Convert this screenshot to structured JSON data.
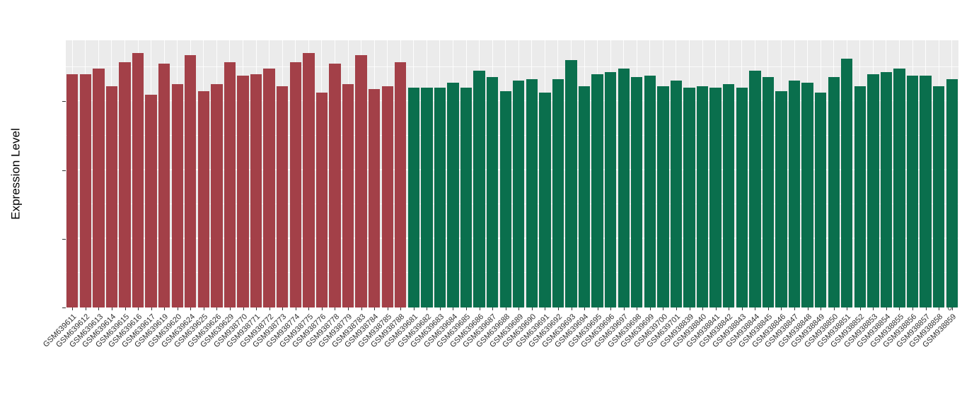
{
  "chart_data": {
    "type": "bar",
    "title": "",
    "xlabel": "",
    "ylabel": "Expression Level",
    "ylim": [
      0,
      7.78
    ],
    "yticks": [
      0,
      2,
      4,
      6
    ],
    "yticks_minor": [
      1,
      3,
      5,
      7
    ],
    "grid": true,
    "legend": "none",
    "panel_background": "#EBEBEB",
    "bar_groups": [
      {
        "name": "group-1",
        "color": "#A34048",
        "start": 0,
        "count": 26
      },
      {
        "name": "group-2",
        "color": "#0A6F4D",
        "start": 26,
        "count": 42
      }
    ],
    "categories": [
      "GSM639611",
      "GSM639612",
      "GSM639613",
      "GSM639614",
      "GSM639615",
      "GSM639616",
      "GSM639617",
      "GSM639619",
      "GSM639620",
      "GSM639624",
      "GSM639625",
      "GSM639626",
      "GSM639629",
      "GSM938770",
      "GSM938771",
      "GSM938772",
      "GSM938773",
      "GSM938774",
      "GSM938775",
      "GSM938776",
      "GSM938778",
      "GSM938779",
      "GSM938783",
      "GSM938784",
      "GSM938785",
      "GSM938788",
      "GSM639681",
      "GSM639682",
      "GSM639683",
      "GSM639684",
      "GSM639685",
      "GSM639686",
      "GSM639687",
      "GSM639688",
      "GSM639689",
      "GSM639690",
      "GSM639691",
      "GSM639692",
      "GSM639693",
      "GSM639694",
      "GSM639695",
      "GSM639696",
      "GSM639697",
      "GSM639698",
      "GSM639699",
      "GSM639700",
      "GSM639701",
      "GSM938839",
      "GSM938840",
      "GSM938841",
      "GSM938842",
      "GSM938843",
      "GSM938844",
      "GSM938845",
      "GSM938846",
      "GSM938847",
      "GSM938848",
      "GSM938849",
      "GSM938850",
      "GSM938851",
      "GSM938852",
      "GSM938853",
      "GSM938854",
      "GSM938855",
      "GSM938856",
      "GSM938857",
      "GSM938858",
      "GSM938859"
    ],
    "values": [
      6.8,
      6.8,
      6.95,
      6.45,
      7.15,
      7.4,
      6.2,
      7.1,
      6.5,
      7.35,
      6.3,
      6.5,
      7.15,
      6.75,
      6.8,
      6.95,
      6.45,
      7.15,
      7.4,
      6.25,
      7.1,
      6.5,
      7.35,
      6.35,
      6.45,
      7.15,
      6.4,
      6.4,
      6.4,
      6.55,
      6.4,
      6.9,
      6.7,
      6.3,
      6.6,
      6.65,
      6.25,
      6.65,
      7.2,
      6.45,
      6.8,
      6.85,
      6.95,
      6.7,
      6.75,
      6.45,
      6.6,
      6.4,
      6.45,
      6.4,
      6.5,
      6.4,
      6.9,
      6.7,
      6.3,
      6.6,
      6.55,
      6.25,
      6.7,
      7.25,
      6.45,
      6.8,
      6.85,
      6.95,
      6.75,
      6.75,
      6.45,
      6.65
    ]
  }
}
